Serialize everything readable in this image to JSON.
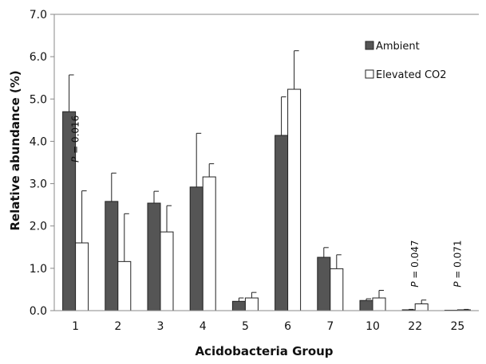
{
  "chart_data": {
    "type": "bar",
    "xlabel": "Acidobacteria Group",
    "ylabel": "Relative abundance (%)",
    "ylim": [
      0,
      7
    ],
    "yticks": [
      "0.0",
      "1.0",
      "2.0",
      "3.0",
      "4.0",
      "5.0",
      "6.0",
      "7.0"
    ],
    "categories": [
      "1",
      "2",
      "3",
      "4",
      "5",
      "6",
      "7",
      "10",
      "22",
      "25"
    ],
    "legend_position": "top-right",
    "grid": false,
    "series": [
      {
        "name": "Ambient",
        "color": "#555555",
        "values": [
          4.7,
          2.58,
          2.54,
          2.92,
          0.22,
          4.14,
          1.26,
          0.24,
          0.02,
          0.01
        ],
        "errors": [
          0.87,
          0.67,
          0.28,
          1.27,
          0.08,
          0.91,
          0.23,
          0.04,
          0.01,
          0.0
        ]
      },
      {
        "name": "Elevated CO2",
        "color": "#ffffff",
        "values": [
          1.6,
          1.16,
          1.86,
          3.16,
          0.3,
          5.23,
          0.99,
          0.3,
          0.16,
          0.02
        ],
        "errors": [
          1.23,
          1.13,
          0.62,
          0.31,
          0.13,
          0.91,
          0.33,
          0.18,
          0.09,
          0.01
        ]
      }
    ],
    "annotations": [
      {
        "category": "1",
        "label": "P = 0.016",
        "y": 3.5
      },
      {
        "category": "22",
        "label": "P = 0.047",
        "y": 0.55
      },
      {
        "category": "25",
        "label": "P = 0.071",
        "y": 0.55
      }
    ]
  }
}
